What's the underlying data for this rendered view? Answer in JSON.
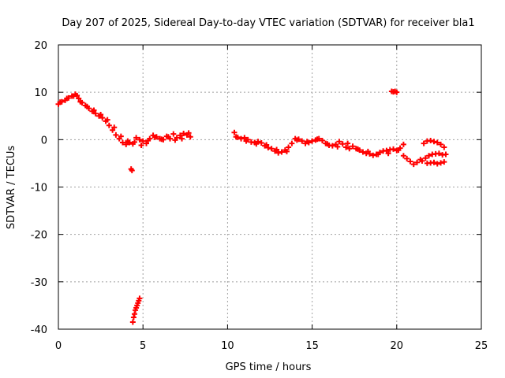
{
  "chart_data": {
    "type": "scatter",
    "title": "Day 207 of 2025, Sidereal Day-to-day VTEC variation (SDTVAR) for receiver bla1",
    "xlabel": "GPS time / hours",
    "ylabel": "SDTVAR / TECUs",
    "xlim": [
      0,
      25
    ],
    "ylim": [
      -40,
      20
    ],
    "xticks": [
      0,
      5,
      10,
      15,
      20,
      25
    ],
    "yticks": [
      -40,
      -30,
      -20,
      -10,
      0,
      10,
      20
    ],
    "grid": true,
    "marker": "+",
    "color": "#ff0000",
    "series": [
      {
        "name": "SDTVAR",
        "x": [
          0.0,
          0.2,
          0.4,
          0.6,
          0.8,
          1.0,
          1.1,
          1.2,
          1.4,
          1.6,
          1.8,
          2.0,
          2.2,
          2.4,
          2.6,
          2.8,
          3.0,
          3.2,
          3.4,
          3.6,
          3.8,
          4.0,
          4.2,
          4.4,
          4.6,
          4.8,
          5.0,
          5.2,
          5.4,
          5.6,
          5.8,
          6.0,
          6.2,
          6.4,
          6.6,
          6.8,
          7.0,
          7.2,
          7.4,
          7.6,
          7.8,
          0.1,
          0.5,
          0.9,
          1.3,
          1.7,
          2.1,
          2.5,
          2.9,
          3.3,
          3.7,
          4.1,
          4.5,
          4.9,
          5.3,
          5.7,
          6.1,
          6.5,
          6.9,
          7.3,
          7.7,
          4.4,
          4.45,
          4.5,
          4.55,
          4.6,
          4.65,
          4.7,
          4.75,
          4.8,
          4.3,
          4.35,
          10.4,
          10.6,
          10.8,
          11.0,
          11.2,
          11.4,
          11.6,
          11.8,
          12.0,
          12.2,
          12.4,
          12.6,
          12.8,
          13.0,
          13.2,
          13.4,
          13.6,
          13.8,
          14.0,
          14.2,
          14.4,
          14.6,
          14.8,
          15.0,
          15.2,
          15.4,
          15.6,
          15.8,
          16.0,
          16.2,
          16.4,
          16.6,
          16.8,
          17.0,
          17.2,
          17.4,
          17.6,
          17.8,
          18.0,
          18.2,
          18.4,
          18.6,
          18.8,
          19.0,
          19.2,
          19.4,
          19.6,
          19.8,
          20.0,
          20.2,
          20.4,
          10.5,
          11.1,
          11.7,
          12.3,
          12.9,
          13.5,
          14.1,
          14.7,
          15.3,
          15.9,
          16.5,
          17.1,
          17.7,
          18.3,
          18.9,
          19.5,
          20.1,
          19.7,
          19.8,
          19.9,
          20.0,
          20.4,
          20.6,
          20.8,
          21.0,
          21.2,
          21.4,
          21.5,
          21.7,
          21.9,
          22.1,
          22.3,
          22.5,
          22.7,
          22.9,
          21.6,
          21.8,
          22.0,
          22.2,
          22.4,
          22.6,
          22.8,
          21.8,
          22.0,
          22.2,
          22.4,
          22.6,
          22.8
        ],
        "y": [
          7.5,
          8.0,
          8.3,
          8.8,
          9.2,
          9.6,
          9.3,
          8.7,
          7.8,
          7.2,
          6.6,
          6.0,
          5.5,
          5.0,
          4.6,
          3.9,
          3.0,
          2.0,
          1.0,
          0.2,
          -0.6,
          -1.0,
          -0.6,
          -0.9,
          0.4,
          0.0,
          -0.3,
          -0.8,
          0.2,
          0.9,
          0.6,
          0.2,
          0.0,
          0.7,
          0.2,
          1.2,
          0.4,
          0.9,
          1.3,
          1.0,
          0.6,
          7.9,
          8.7,
          9.2,
          8.0,
          7.0,
          6.2,
          5.3,
          4.2,
          2.6,
          0.7,
          -0.3,
          -0.5,
          -1.2,
          -0.2,
          0.5,
          0.1,
          0.6,
          -0.1,
          0.2,
          1.4,
          -38.5,
          -37.5,
          -36.8,
          -36.0,
          -35.5,
          -35.0,
          -34.5,
          -34.0,
          -33.5,
          -6.2,
          -6.5,
          1.5,
          0.5,
          0.2,
          0.4,
          0.0,
          -0.5,
          -0.6,
          -0.4,
          -0.7,
          -1.3,
          -1.7,
          -1.9,
          -2.4,
          -2.8,
          -2.6,
          -2.2,
          -1.6,
          -0.8,
          0.2,
          0.1,
          -0.3,
          -0.8,
          -0.6,
          -0.3,
          -0.1,
          0.2,
          -0.2,
          -0.8,
          -1.2,
          -1.3,
          -1.0,
          -0.4,
          -0.9,
          -1.6,
          -1.9,
          -1.4,
          -1.9,
          -2.2,
          -2.6,
          -2.9,
          -3.0,
          -3.3,
          -3.1,
          -2.7,
          -2.4,
          -2.3,
          -2.1,
          -2.0,
          -2.3,
          -1.8,
          -1.0,
          0.6,
          -0.3,
          -0.9,
          -1.1,
          -2.1,
          -2.5,
          -0.1,
          -0.4,
          0.1,
          -0.9,
          -1.5,
          -0.8,
          -2.0,
          -2.5,
          -3.1,
          -2.9,
          -2.2,
          10.2,
          10.1,
          10.2,
          10.0,
          -3.4,
          -4.0,
          -4.6,
          -5.2,
          -4.8,
          -4.2,
          -4.5,
          -3.9,
          -3.4,
          -3.1,
          -3.0,
          -2.9,
          -3.2,
          -3.1,
          -0.8,
          -0.3,
          -0.2,
          -0.4,
          -0.6,
          -1.0,
          -1.6,
          -5.0,
          -4.9,
          -4.8,
          -5.1,
          -4.9,
          -4.7
        ]
      }
    ]
  }
}
